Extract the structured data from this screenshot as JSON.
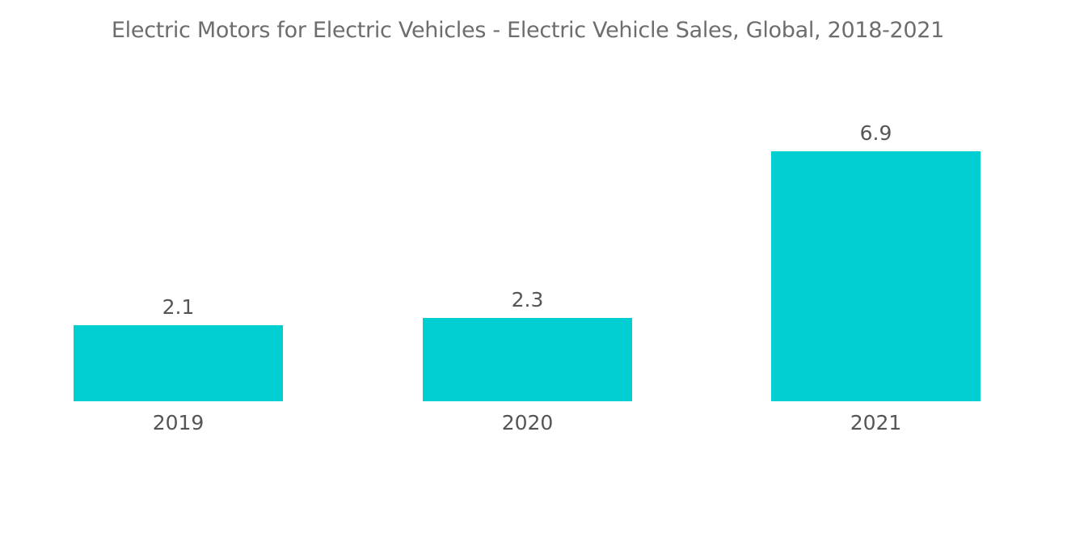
{
  "chart_data": {
    "type": "bar",
    "title": "Electric Motors for Electric Vehicles -  Electric Vehicle Sales, Global, 2018-2021",
    "categories": [
      "2019",
      "2020",
      "2021"
    ],
    "values": [
      2.1,
      2.3,
      6.9
    ],
    "value_labels": [
      "2.1",
      "2.3",
      "6.9"
    ],
    "xlabel": "",
    "ylabel": "",
    "ylim": [
      0,
      6.9
    ],
    "grid": false,
    "legend": "none",
    "bar_color": "#00ced1"
  }
}
